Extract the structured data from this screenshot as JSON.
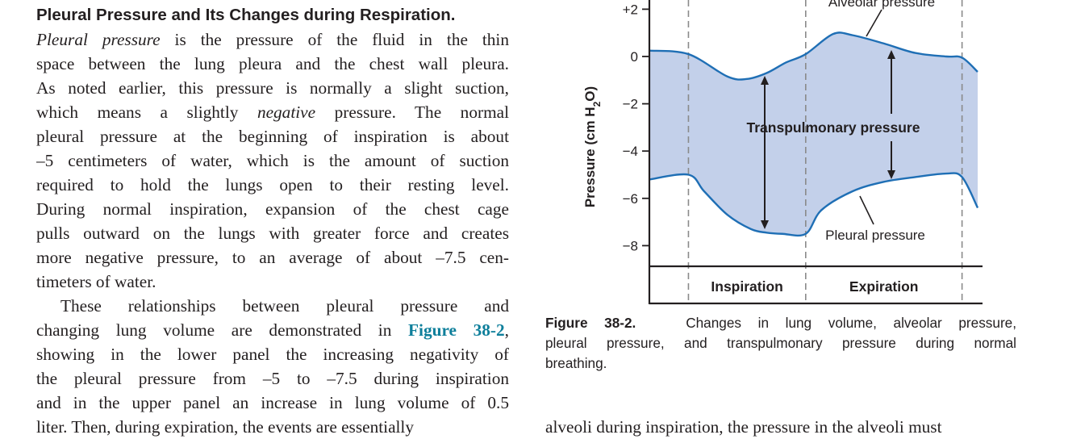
{
  "text": {
    "heading": "Pleural Pressure and Its Changes during Respiration.",
    "p1_lines": [
      [
        "<i>Pleural pressure</i> is the pressure of the fluid in the thin"
      ],
      [
        "space between the lung pleura and the chest wall pleura."
      ],
      [
        "As noted earlier, this pressure is normally a slight suction,"
      ],
      [
        "which means a slightly <i>negative</i> pressure. The normal"
      ],
      [
        "pleural pressure at the beginning of inspiration is about"
      ],
      [
        "–5 centimeters of water, which is the amount of suction"
      ],
      [
        "required to hold the lungs open to their resting level."
      ],
      [
        "During normal inspiration, expansion of the chest cage"
      ],
      [
        "pulls outward on the lungs with greater force and creates"
      ],
      [
        "more negative pressure, to an average of about –7.5 cen-"
      ],
      [
        "timeters of water."
      ]
    ],
    "p2_lines": [
      "These relationships between pleural pressure and",
      "changing lung volume are demonstrated in <span class=\"figref\">Figure 38-2</span>,",
      "showing in the lower panel the increasing negativity of",
      "the pleural pressure from –5 to –7.5 during inspiration",
      "and in the upper panel an increase in lung volume of 0.5",
      "liter. Then, during expiration, the events are essentially"
    ],
    "right_bottom": "alveoli during inspiration, the pressure in the alveoli must"
  },
  "caption": {
    "label": "Figure 38-2.",
    "lines": [
      "Changes in lung volume, alveolar pressure,",
      "pleural pressure, and transpulmonary pressure during normal",
      "breathing."
    ]
  },
  "chart_data": {
    "type": "line",
    "ylabel": "Pressure (cm H2O)",
    "yticks": [
      "+2",
      "0",
      "−2",
      "−4",
      "−6",
      "−8"
    ],
    "ytick_values": [
      2,
      0,
      -2,
      -4,
      -6,
      -8
    ],
    "phases": [
      "Inspiration",
      "Expiration"
    ],
    "labels": {
      "alveolar": "Alveolar pressure",
      "transpulmonary": "Transpulmonary pressure",
      "pleural": "Pleural pressure"
    },
    "series": [
      {
        "name": "Alveolar pressure",
        "x": [
          0,
          0.5,
          1.0,
          1.25,
          1.5,
          1.75,
          2.0,
          2.35,
          2.6,
          3.0,
          3.4,
          3.8,
          4.0,
          4.2
        ],
        "y": [
          0.25,
          0.1,
          -0.85,
          -0.95,
          -0.7,
          -0.25,
          0.1,
          0.95,
          0.9,
          0.55,
          0.15,
          0,
          -0.05,
          -0.65
        ]
      },
      {
        "name": "Pleural pressure",
        "x": [
          0,
          0.5,
          0.7,
          1.0,
          1.3,
          1.5,
          1.7,
          2.0,
          2.2,
          2.6,
          3.0,
          3.4,
          3.8,
          4.0,
          4.2
        ],
        "y": [
          -5.2,
          -5.0,
          -5.7,
          -6.7,
          -7.3,
          -7.45,
          -7.5,
          -7.5,
          -6.5,
          -5.7,
          -5.3,
          -5.1,
          -4.95,
          -5.1,
          -6.4
        ]
      }
    ],
    "phase_boundaries_x": [
      0.5,
      2.0,
      4.0
    ],
    "colors": {
      "line": "#1f6fb5",
      "fill": "#c3d0ea",
      "axis": "#231f20"
    }
  }
}
